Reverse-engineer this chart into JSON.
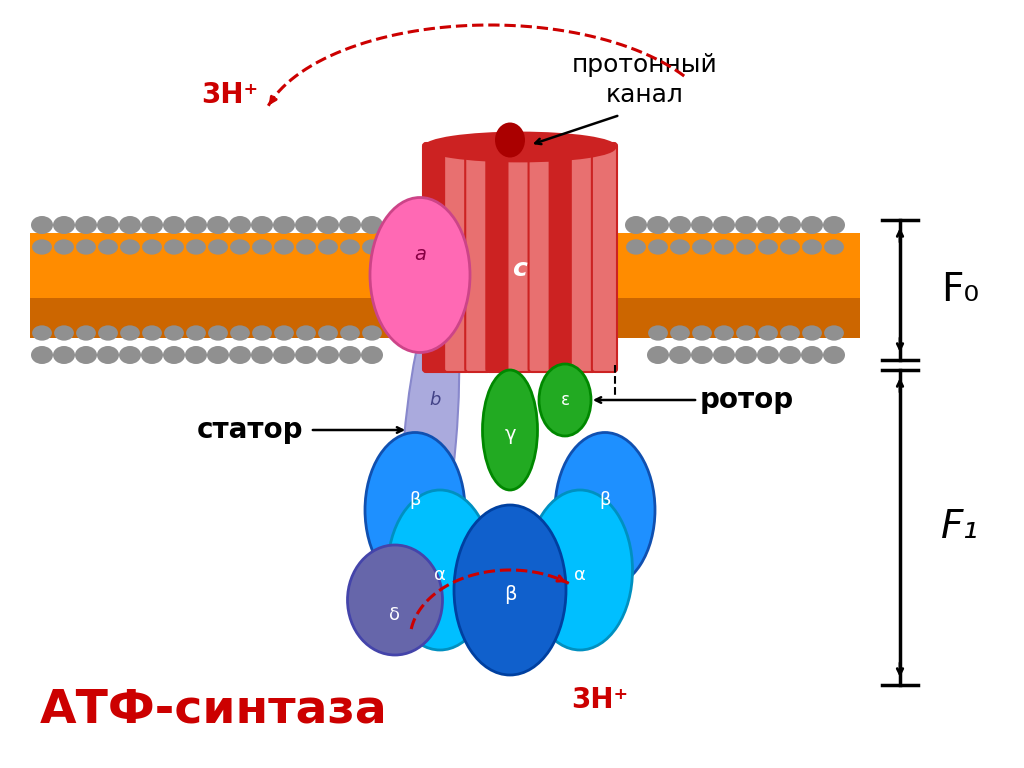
{
  "background_color": "#ffffff",
  "membrane_color_orange": "#FF8C00",
  "membrane_color_gray": "#909090",
  "title_text": "АТФ-синтаза",
  "title_color": "#CC0000",
  "label_proton_channel": "протонный\nканал",
  "label_stator": "статор",
  "label_rotor": "ротор",
  "label_3h_top": "3Н⁺",
  "label_3h_bottom": "3Н⁺",
  "label_F0": "F₀",
  "label_F1": "F₁",
  "red_color": "#CC0000",
  "c_ring_dark": "#CC2222",
  "c_ring_light": "#E87070",
  "a_subunit_color": "#FF69B4",
  "b_subunit_color": "#AAAADD",
  "gamma_color": "#22AA22",
  "epsilon_color": "#22AA22",
  "delta_color": "#6666AA",
  "alpha_color": "#00BFFF",
  "beta_left_color": "#1E90FF",
  "beta_center_color": "#1060CC",
  "beta_right_color": "#1E90FF"
}
